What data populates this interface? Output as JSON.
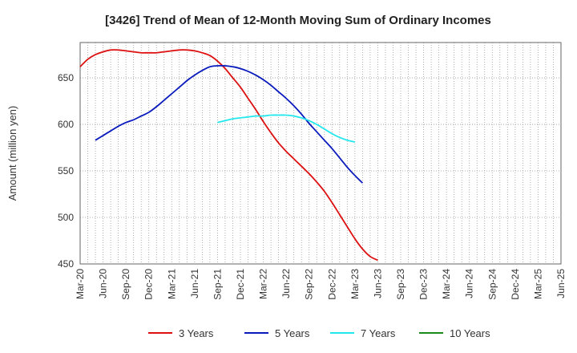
{
  "chart_data": {
    "type": "line",
    "title": "[3426]  Trend of Mean of 12-Month Moving Sum of Ordinary Incomes",
    "xlabel": "",
    "ylabel": "Amount (million yen)",
    "ylim": [
      450,
      688
    ],
    "yticks": [
      450,
      500,
      550,
      600,
      650
    ],
    "x_ticks": [
      "Mar-20",
      "Jun-20",
      "Sep-20",
      "Dec-20",
      "Mar-21",
      "Jun-21",
      "Sep-21",
      "Dec-21",
      "Mar-22",
      "Jun-22",
      "Sep-22",
      "Dec-22",
      "Mar-23",
      "Jun-23",
      "Sep-23",
      "Dec-23",
      "Mar-24",
      "Jun-24",
      "Sep-24",
      "Dec-24",
      "Mar-25",
      "Jun-25"
    ],
    "grid": true,
    "legend_position": "bottom",
    "series": [
      {
        "name": "3 Years",
        "color": "#dd1111",
        "start_index": 0,
        "values": [
          662,
          670,
          675,
          678,
          680,
          680,
          679,
          678,
          677,
          677,
          677,
          678,
          679,
          680,
          680,
          679,
          677,
          674,
          668,
          660,
          650,
          640,
          628,
          616,
          603,
          591,
          580,
          571,
          563,
          555,
          547,
          538,
          528,
          516,
          503,
          490,
          477,
          466,
          458,
          454
        ]
      },
      {
        "name": "5 Years",
        "color": "#0a1bbd",
        "start_index": 2,
        "values": [
          583,
          588,
          593,
          598,
          602,
          605,
          609,
          613,
          619,
          626,
          633,
          640,
          647,
          653,
          658,
          662,
          663,
          663,
          662,
          660,
          657,
          653,
          648,
          642,
          635,
          628,
          620,
          611,
          601,
          592,
          583,
          574,
          564,
          554,
          545,
          537
        ]
      },
      {
        "name": "7 Years",
        "color": "#22e8ee",
        "start_index": 18,
        "values": [
          602,
          604,
          606,
          607,
          608,
          609,
          609,
          610,
          610,
          610,
          609,
          607,
          604,
          600,
          595,
          590,
          586,
          583,
          581
        ]
      },
      {
        "name": "10 Years",
        "color": "#1a8a1a",
        "start_index": 0,
        "values": []
      }
    ]
  }
}
